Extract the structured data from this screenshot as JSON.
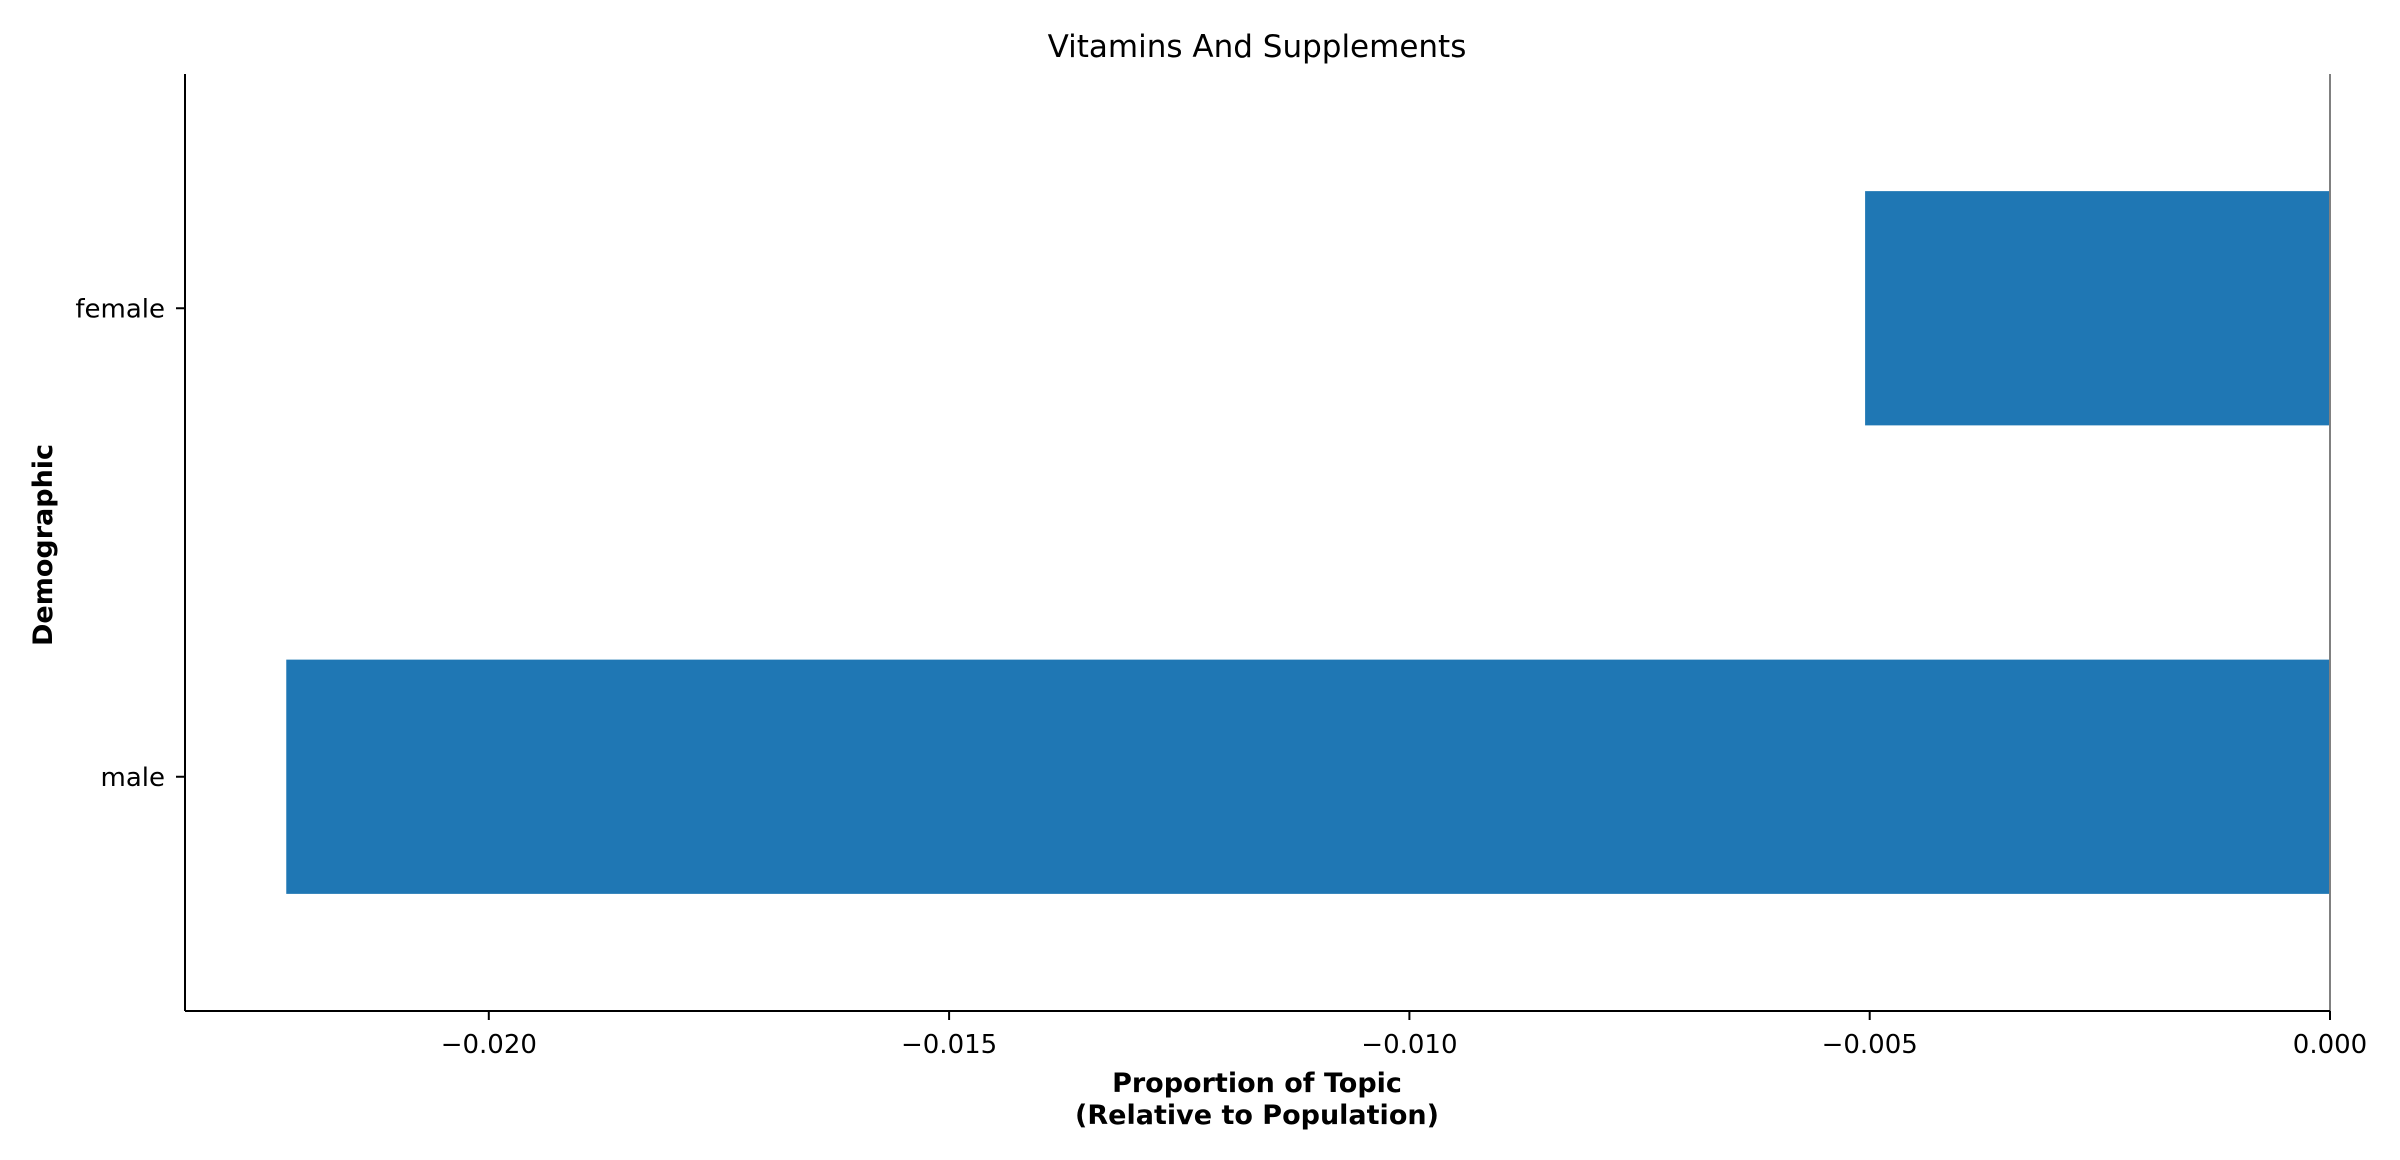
{
  "chart_data": {
    "type": "bar",
    "orientation": "horizontal",
    "title": "Vitamins And Supplements",
    "xlabel_line1": "Proportion of Topic",
    "xlabel_line2": "(Relative to Population)",
    "ylabel": "Demographic",
    "categories": [
      "male",
      "female"
    ],
    "values": [
      -0.0222,
      -0.00505
    ],
    "xlim": [
      -0.0233,
      0.0
    ],
    "xticks": [
      -0.02,
      -0.015,
      -0.01,
      -0.005,
      0.0
    ],
    "xtick_labels": [
      "−0.020",
      "−0.015",
      "−0.010",
      "−0.005",
      "0.000"
    ],
    "bar_color": "#1f77b4",
    "grid": false,
    "legend": "none"
  }
}
